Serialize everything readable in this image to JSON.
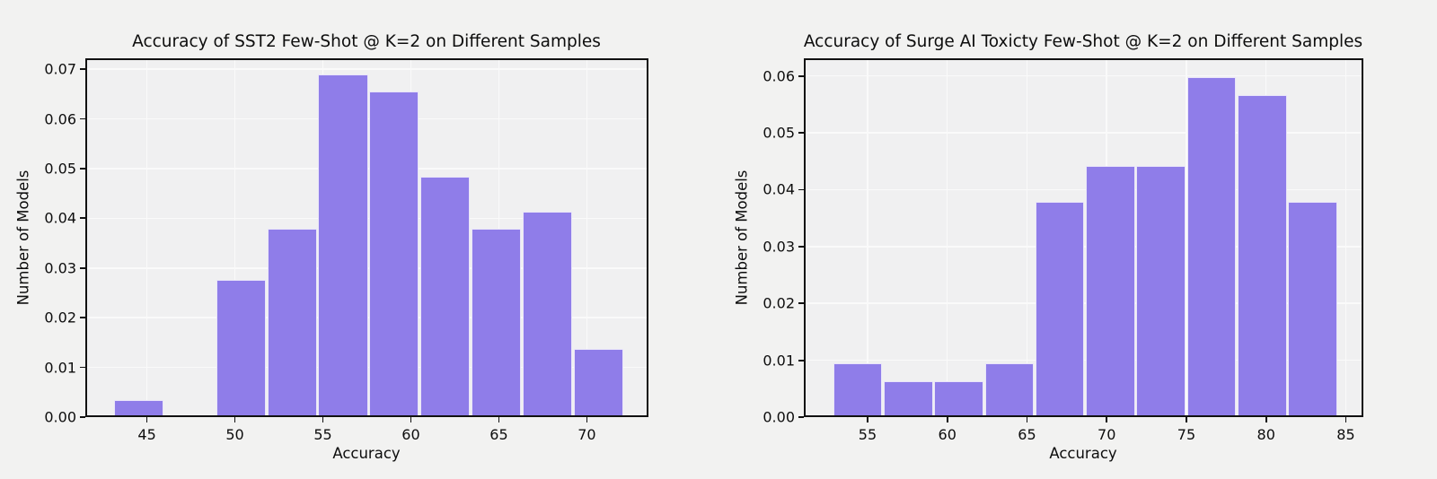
{
  "figure": {
    "background": "#f2f2f1",
    "axes_background": "#f0f0f1",
    "grid_color": "#fafafa",
    "spine_color": "#111111",
    "text_color": "#0d0d0d",
    "bar_color": "#8f7de9",
    "bar_edge_color": "#e9e5f9"
  },
  "chart_data": [
    {
      "type": "bar",
      "subtype": "histogram",
      "title": "Accuracy of SST2 Few-Shot @ K=2 on Different Samples",
      "xlabel": "Accuracy",
      "ylabel": "Number of Models",
      "grid": true,
      "legend": null,
      "bin_edges": [
        43.1,
        46.0,
        48.9,
        51.8,
        54.7,
        57.6,
        60.5,
        63.4,
        66.3,
        69.2,
        72.1
      ],
      "values": [
        0.0034,
        0,
        0.0276,
        0.0379,
        0.069,
        0.0655,
        0.0483,
        0.0379,
        0.0414,
        0.0138
      ],
      "xlim": [
        41.5,
        73.5
      ],
      "ylim": [
        0,
        0.0722
      ],
      "xticks": [
        45,
        50,
        55,
        60,
        65,
        70
      ],
      "xtick_labels": [
        "45",
        "50",
        "55",
        "60",
        "65",
        "70"
      ],
      "yticks": [
        0,
        0.01,
        0.02,
        0.03,
        0.04,
        0.05,
        0.06,
        0.07
      ],
      "ytick_labels": [
        "0.00",
        "0.01",
        "0.02",
        "0.03",
        "0.04",
        "0.05",
        "0.06",
        "0.07"
      ]
    },
    {
      "type": "bar",
      "subtype": "histogram",
      "title": "Accuracy of Surge AI Toxicty Few-Shot @ K=2 on Different Samples",
      "xlabel": "Accuracy",
      "ylabel": "Number of Models",
      "grid": true,
      "legend": null,
      "bin_edges": [
        52.8,
        55.97,
        59.14,
        62.31,
        65.48,
        68.65,
        71.82,
        74.99,
        78.16,
        81.33,
        84.5
      ],
      "values": [
        0.0095,
        0.0063,
        0.0063,
        0.0095,
        0.0378,
        0.0441,
        0.0441,
        0.0598,
        0.0567,
        0.0378
      ],
      "xlim": [
        51.0,
        86.1
      ],
      "ylim": [
        0,
        0.0631
      ],
      "xticks": [
        55,
        60,
        65,
        70,
        75,
        80,
        85
      ],
      "xtick_labels": [
        "55",
        "60",
        "65",
        "70",
        "75",
        "80",
        "85"
      ],
      "yticks": [
        0,
        0.01,
        0.02,
        0.03,
        0.04,
        0.05,
        0.06
      ],
      "ytick_labels": [
        "0.00",
        "0.01",
        "0.02",
        "0.03",
        "0.04",
        "0.05",
        "0.06"
      ]
    }
  ]
}
